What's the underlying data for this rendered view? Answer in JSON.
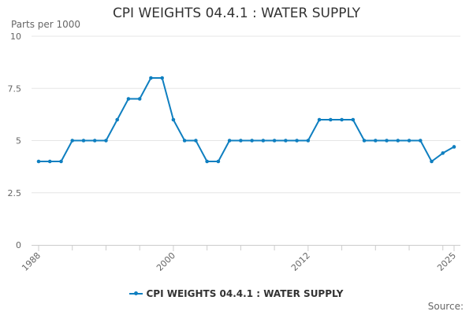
{
  "colors": {
    "series": "#0f7fc0",
    "grid": "#e6e6e6",
    "axis": "#cccccc",
    "tick_text": "#666666"
  },
  "chart_data": {
    "type": "line",
    "title": "CPI WEIGHTS 04.4.1 : WATER SUPPLY",
    "ylabel": "Parts per 1000",
    "xlabel": "",
    "xlim": [
      1988,
      2025
    ],
    "ylim": [
      0,
      10
    ],
    "x_ticks": [
      1988,
      2000,
      2012,
      2025
    ],
    "x_ticks_minor": [
      1991,
      1994,
      1997,
      2003,
      2006,
      2009,
      2015,
      2018,
      2021,
      2024
    ],
    "y_ticks": [
      0,
      2.5,
      5,
      7.5,
      10
    ],
    "y_tick_labels": [
      "0",
      "2.5",
      "5",
      "7.5",
      "10"
    ],
    "grid": true,
    "legend": "bottom-center",
    "series": [
      {
        "name": "CPI WEIGHTS 04.4.1 : WATER SUPPLY",
        "x": [
          1988,
          1989,
          1990,
          1991,
          1992,
          1993,
          1994,
          1995,
          1996,
          1997,
          1998,
          1999,
          2000,
          2001,
          2002,
          2003,
          2004,
          2005,
          2006,
          2007,
          2008,
          2009,
          2010,
          2011,
          2012,
          2013,
          2014,
          2015,
          2016,
          2017,
          2018,
          2019,
          2020,
          2021,
          2022,
          2023,
          2024,
          2025
        ],
        "values": [
          4,
          4,
          4,
          5,
          5,
          5,
          5,
          6,
          7,
          7,
          8,
          8,
          6,
          5,
          5,
          4,
          4,
          5,
          5,
          5,
          5,
          5,
          5,
          5,
          5,
          6,
          6,
          6,
          6,
          5,
          5,
          5,
          5,
          5,
          5,
          4,
          4.4,
          4.7
        ]
      }
    ]
  },
  "source_label": "Source:"
}
